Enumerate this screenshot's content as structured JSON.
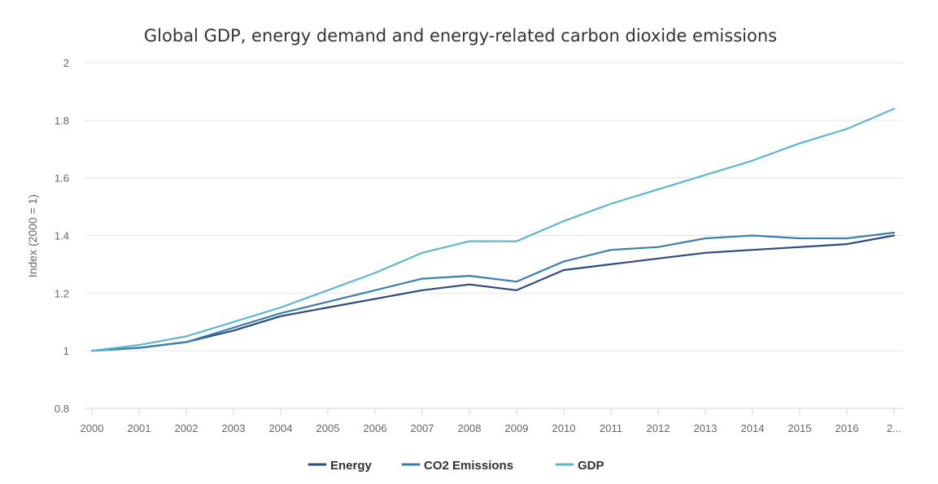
{
  "chart_data": {
    "type": "line",
    "title": "Global GDP, energy demand and energy-related carbon dioxide emissions",
    "xlabel": "",
    "ylabel": "Index (2000 = 1)",
    "ylim": [
      0.8,
      2
    ],
    "yticks": [
      "0.8",
      "1",
      "1.2",
      "1.4",
      "1.6",
      "1.8",
      "2"
    ],
    "ytick_values": [
      0.8,
      1,
      1.2,
      1.4,
      1.6,
      1.8,
      2
    ],
    "categories": [
      "2000",
      "2001",
      "2002",
      "2003",
      "2004",
      "2005",
      "2006",
      "2007",
      "2008",
      "2009",
      "2010",
      "2011",
      "2012",
      "2013",
      "2014",
      "2015",
      "2016",
      "2..."
    ],
    "series": [
      {
        "name": "Energy",
        "color": "#2b4a80",
        "values": [
          1.0,
          1.01,
          1.03,
          1.07,
          1.12,
          1.15,
          1.18,
          1.21,
          1.23,
          1.21,
          1.28,
          1.3,
          1.32,
          1.34,
          1.35,
          1.36,
          1.37,
          1.4
        ]
      },
      {
        "name": "CO2 Emissions",
        "color": "#3b80ad",
        "values": [
          1.0,
          1.01,
          1.03,
          1.08,
          1.13,
          1.17,
          1.21,
          1.25,
          1.26,
          1.24,
          1.31,
          1.35,
          1.36,
          1.39,
          1.4,
          1.39,
          1.39,
          1.41
        ]
      },
      {
        "name": "GDP",
        "color": "#5db7cf",
        "values": [
          1.0,
          1.02,
          1.05,
          1.1,
          1.15,
          1.21,
          1.27,
          1.34,
          1.38,
          1.38,
          1.45,
          1.51,
          1.56,
          1.61,
          1.66,
          1.72,
          1.77,
          1.84
        ]
      }
    ],
    "legend": "bottom-center",
    "grid": true
  }
}
